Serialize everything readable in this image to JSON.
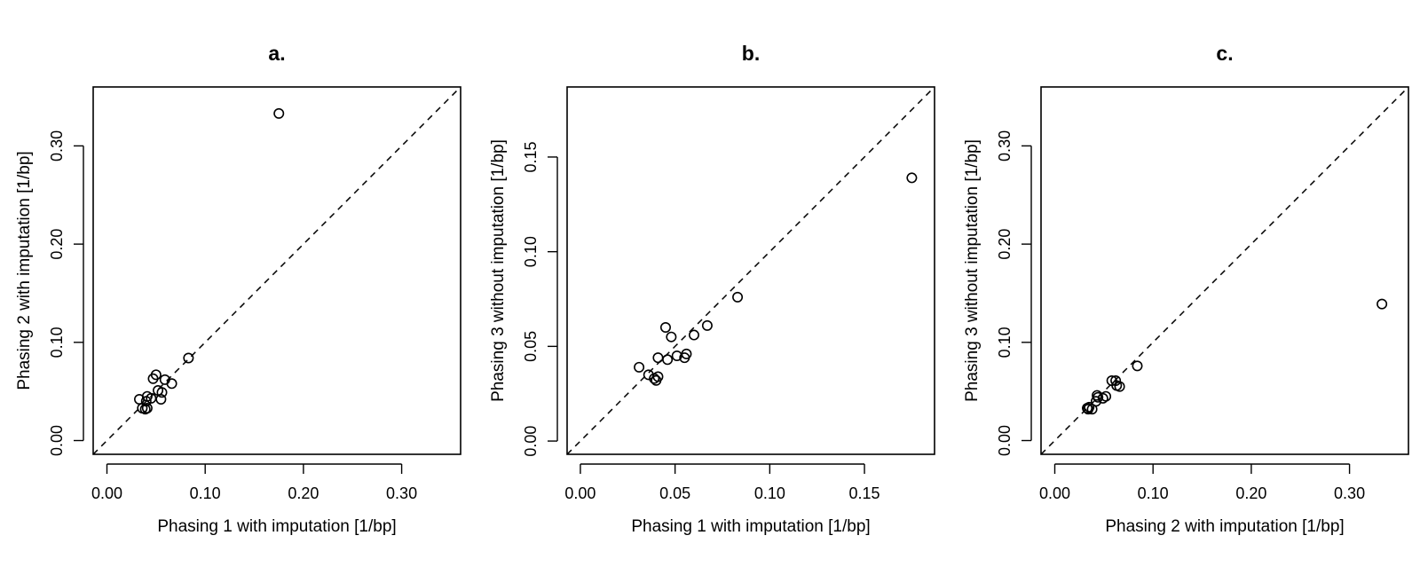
{
  "chart_data": [
    {
      "type": "scatter",
      "title": "a.",
      "xlabel": "Phasing 1 with imputation [1/bp]",
      "ylabel": "Phasing 2 with imputation [1/bp]",
      "xlim": [
        -0.014,
        0.36
      ],
      "ylim": [
        -0.014,
        0.36
      ],
      "xticks": [
        "0.00",
        "0.10",
        "0.20",
        "0.30"
      ],
      "xtick_values": [
        0,
        0.1,
        0.2,
        0.3
      ],
      "yticks": [
        "0.00",
        "0.10",
        "0.20",
        "0.30"
      ],
      "ytick_values": [
        0,
        0.1,
        0.2,
        0.3
      ],
      "reference_line": "y = x (dashed)",
      "x": [
        0.175,
        0.083,
        0.066,
        0.059,
        0.047,
        0.05,
        0.052,
        0.056,
        0.055,
        0.045,
        0.041,
        0.033,
        0.04,
        0.036,
        0.039,
        0.041
      ],
      "y": [
        0.333,
        0.084,
        0.058,
        0.062,
        0.063,
        0.067,
        0.051,
        0.049,
        0.042,
        0.043,
        0.045,
        0.042,
        0.04,
        0.033,
        0.032,
        0.033
      ]
    },
    {
      "type": "scatter",
      "title": "b.",
      "xlabel": "Phasing 1 with imputation [1/bp]",
      "ylabel": "Phasing 3 without imputation [1/bp]",
      "xlim": [
        -0.007,
        0.187
      ],
      "ylim": [
        -0.007,
        0.187
      ],
      "xticks": [
        "0.00",
        "0.05",
        "0.10",
        "0.15"
      ],
      "xtick_values": [
        0,
        0.05,
        0.1,
        0.15
      ],
      "yticks": [
        "0.00",
        "0.05",
        "0.10",
        "0.15"
      ],
      "ytick_values": [
        0,
        0.05,
        0.1,
        0.15
      ],
      "reference_line": "y = x (dashed)",
      "x": [
        0.175,
        0.083,
        0.067,
        0.06,
        0.045,
        0.048,
        0.051,
        0.056,
        0.055,
        0.041,
        0.046,
        0.031,
        0.036,
        0.039,
        0.04,
        0.041
      ],
      "y": [
        0.139,
        0.076,
        0.061,
        0.056,
        0.06,
        0.055,
        0.045,
        0.046,
        0.044,
        0.044,
        0.043,
        0.039,
        0.035,
        0.033,
        0.032,
        0.034
      ]
    },
    {
      "type": "scatter",
      "title": "c.",
      "xlabel": "Phasing 2 with imputation [1/bp]",
      "ylabel": "Phasing 3 without imputation [1/bp]",
      "xlim": [
        -0.014,
        0.36
      ],
      "ylim": [
        -0.014,
        0.36
      ],
      "xticks": [
        "0.00",
        "0.10",
        "0.20",
        "0.30"
      ],
      "xtick_values": [
        0,
        0.1,
        0.2,
        0.3
      ],
      "yticks": [
        "0.00",
        "0.10",
        "0.20",
        "0.30"
      ],
      "ytick_values": [
        0,
        0.1,
        0.2,
        0.3
      ],
      "reference_line": "y = x (dashed)",
      "x": [
        0.333,
        0.084,
        0.058,
        0.062,
        0.063,
        0.066,
        0.052,
        0.049,
        0.044,
        0.042,
        0.043,
        0.038,
        0.033,
        0.034,
        0.035
      ],
      "y": [
        0.139,
        0.076,
        0.061,
        0.061,
        0.056,
        0.055,
        0.045,
        0.043,
        0.044,
        0.04,
        0.046,
        0.032,
        0.033,
        0.032,
        0.034
      ]
    }
  ]
}
